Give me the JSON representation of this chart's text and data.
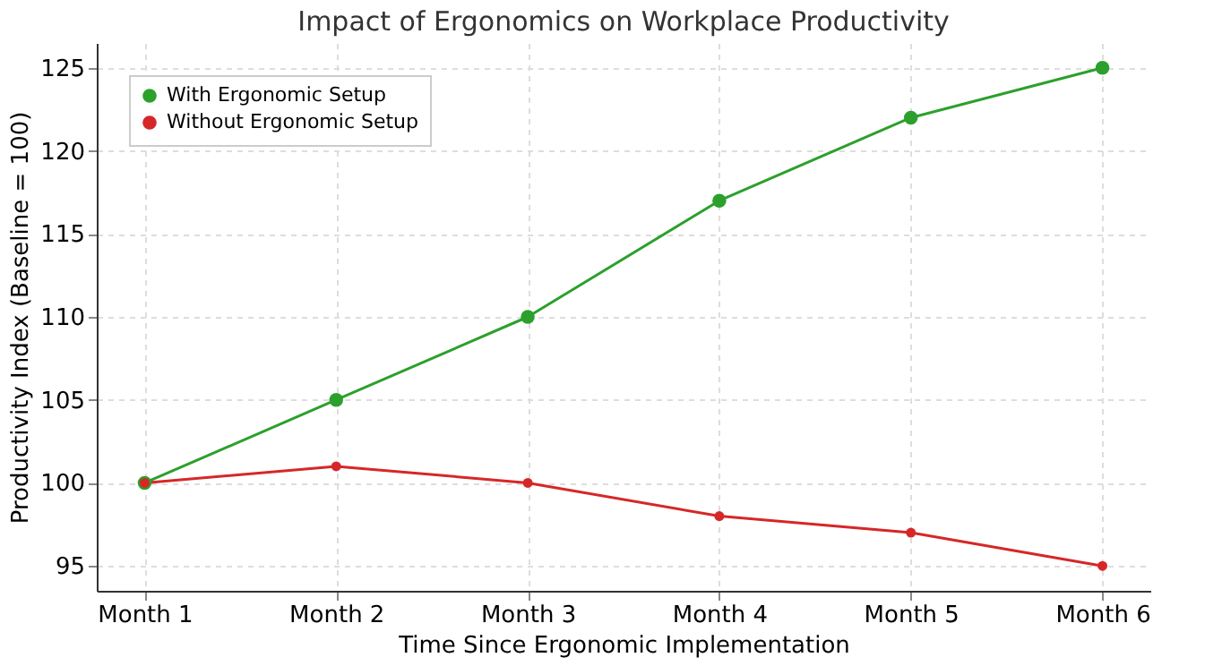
{
  "chart_data": {
    "type": "line",
    "title": "Impact of Ergonomics on Workplace Productivity",
    "xlabel": "Time Since Ergonomic Implementation",
    "ylabel": "Productivity Index (Baseline = 100)",
    "categories": [
      "Month 1",
      "Month 2",
      "Month 3",
      "Month 4",
      "Month 5",
      "Month 6"
    ],
    "series": [
      {
        "name": "With Ergonomic Setup",
        "color": "#2ca02c",
        "values": [
          100,
          105,
          110,
          117,
          122,
          125
        ]
      },
      {
        "name": "Without Ergonomic Setup",
        "color": "#d62728",
        "values": [
          100,
          101,
          100,
          98,
          97,
          95
        ]
      }
    ],
    "ylim": [
      93.5,
      126.5
    ],
    "yticks": [
      95,
      100,
      105,
      110,
      115,
      120,
      125
    ],
    "grid": true,
    "legend": "top left",
    "marker": "circle",
    "line_style": "solid"
  }
}
